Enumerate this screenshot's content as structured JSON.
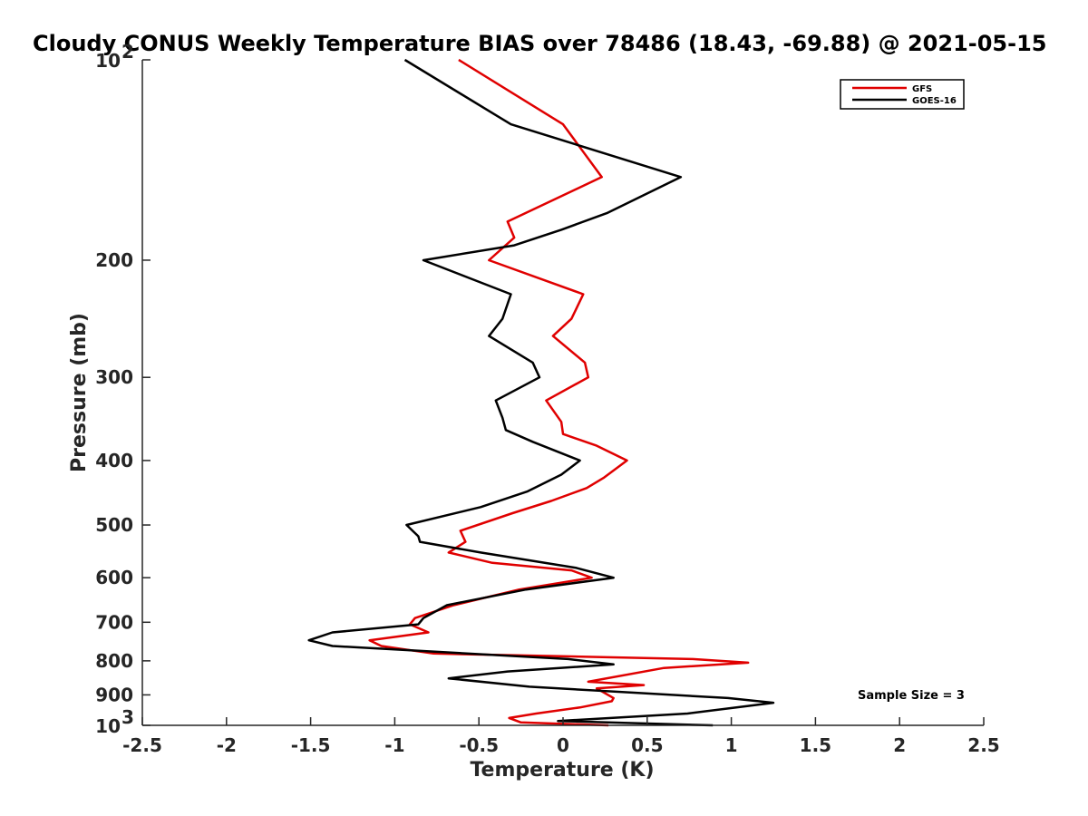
{
  "chart_data": {
    "type": "line",
    "title": "Cloudy CONUS Weekly Temperature BIAS over 78486 (18.43, -69.88) @ 2021-05-15",
    "xlabel": "Temperature (K)",
    "ylabel": "Pressure (mb)",
    "xlim": [
      -2.5,
      2.5
    ],
    "ylim": [
      100,
      1000
    ],
    "y_scale": "log",
    "y_reversed": true,
    "x_ticks": [
      "-2.5",
      "-2",
      "-1.5",
      "-1",
      "-0.5",
      "0",
      "0.5",
      "1",
      "1.5",
      "2",
      "2.5"
    ],
    "y_ticks": [
      {
        "value": 100,
        "base": "10",
        "exp": "2"
      },
      {
        "value": 200,
        "label": "200"
      },
      {
        "value": 300,
        "label": "300"
      },
      {
        "value": 400,
        "label": "400"
      },
      {
        "value": 500,
        "label": "500"
      },
      {
        "value": 600,
        "label": "600"
      },
      {
        "value": 700,
        "label": "700"
      },
      {
        "value": 800,
        "label": "800"
      },
      {
        "value": 900,
        "label": "900"
      },
      {
        "value": 1000,
        "base": "10",
        "exp": "3"
      }
    ],
    "grid": false,
    "legend_position": "top-right",
    "annotation": "Sample Size = 3",
    "series": [
      {
        "name": "GFS",
        "color": "#e00000",
        "points": [
          [
            -0.62,
            100
          ],
          [
            0,
            125
          ],
          [
            0.23,
            150
          ],
          [
            -0.33,
            175
          ],
          [
            -0.29,
            185
          ],
          [
            -0.44,
            200
          ],
          [
            0.12,
            225
          ],
          [
            0.05,
            245
          ],
          [
            -0.06,
            260
          ],
          [
            0.13,
            285
          ],
          [
            0.15,
            300
          ],
          [
            -0.1,
            325
          ],
          [
            -0.01,
            350
          ],
          [
            0.0,
            365
          ],
          [
            0.2,
            380
          ],
          [
            0.38,
            400
          ],
          [
            0.24,
            425
          ],
          [
            0.14,
            440
          ],
          [
            -0.07,
            460
          ],
          [
            -0.3,
            480
          ],
          [
            -0.61,
            510
          ],
          [
            -0.58,
            530
          ],
          [
            -0.68,
            550
          ],
          [
            -0.42,
            570
          ],
          [
            0.05,
            585
          ],
          [
            0.17,
            600
          ],
          [
            -0.26,
            625
          ],
          [
            -0.65,
            660
          ],
          [
            -0.88,
            690
          ],
          [
            -0.91,
            705
          ],
          [
            -0.8,
            725
          ],
          [
            -1.15,
            745
          ],
          [
            -1.08,
            760
          ],
          [
            -0.77,
            780
          ],
          [
            0.77,
            795
          ],
          [
            1.1,
            805
          ],
          [
            0.6,
            820
          ],
          [
            0.15,
            860
          ],
          [
            0.48,
            870
          ],
          [
            0.2,
            880
          ],
          [
            0.3,
            910
          ],
          [
            0.29,
            920
          ],
          [
            0.1,
            940
          ],
          [
            -0.16,
            960
          ],
          [
            -0.32,
            975
          ],
          [
            -0.25,
            990
          ],
          [
            0.27,
            1000
          ]
        ]
      },
      {
        "name": "GOES-16",
        "color": "#000000",
        "points": [
          [
            -0.94,
            100
          ],
          [
            -0.31,
            125
          ],
          [
            0.7,
            150
          ],
          [
            0.26,
            170
          ],
          [
            -0.01,
            180
          ],
          [
            -0.29,
            190
          ],
          [
            -0.83,
            200
          ],
          [
            -0.31,
            225
          ],
          [
            -0.36,
            245
          ],
          [
            -0.44,
            260
          ],
          [
            -0.18,
            285
          ],
          [
            -0.14,
            300
          ],
          [
            -0.4,
            325
          ],
          [
            -0.36,
            345
          ],
          [
            -0.34,
            360
          ],
          [
            -0.18,
            375
          ],
          [
            0.1,
            400
          ],
          [
            -0.01,
            420
          ],
          [
            -0.21,
            445
          ],
          [
            -0.49,
            470
          ],
          [
            -0.93,
            500
          ],
          [
            -0.86,
            520
          ],
          [
            -0.85,
            530
          ],
          [
            -0.49,
            550
          ],
          [
            0.08,
            580
          ],
          [
            0.3,
            600
          ],
          [
            -0.22,
            625
          ],
          [
            -0.69,
            660
          ],
          [
            -0.83,
            690
          ],
          [
            -0.86,
            705
          ],
          [
            -1.37,
            725
          ],
          [
            -1.51,
            745
          ],
          [
            -1.37,
            760
          ],
          [
            0.03,
            795
          ],
          [
            0.3,
            810
          ],
          [
            -0.33,
            830
          ],
          [
            -0.68,
            850
          ],
          [
            -0.2,
            875
          ],
          [
            0.98,
            910
          ],
          [
            1.25,
            925
          ],
          [
            1.1,
            935
          ],
          [
            0.74,
            960
          ],
          [
            -0.03,
            985
          ],
          [
            0.89,
            1000
          ]
        ]
      }
    ]
  }
}
